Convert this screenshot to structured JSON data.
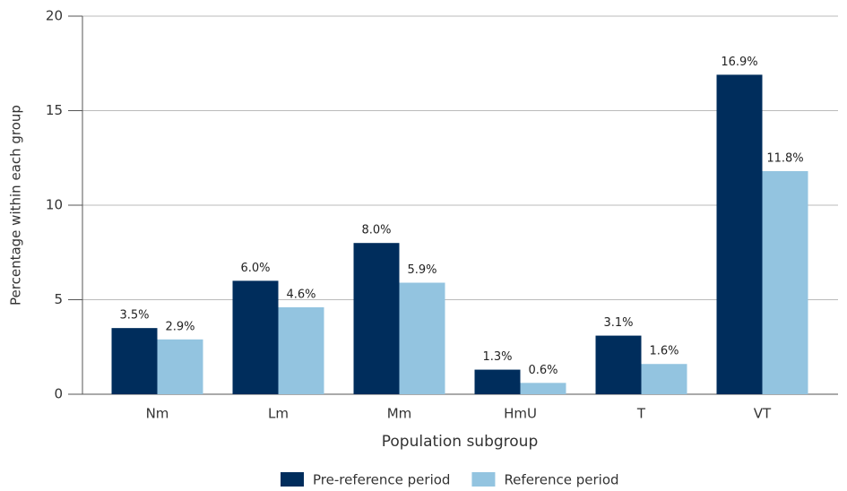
{
  "chart_data": {
    "type": "bar",
    "x_label": "Population subgroup",
    "y_label": "Percentage within each group",
    "categories": [
      "Nm",
      "Lm",
      "Mm",
      "HmU",
      "T",
      "VT"
    ],
    "series": [
      {
        "name": "Pre-reference period",
        "color": "#002d5c",
        "values": [
          3.5,
          6.0,
          8.0,
          1.3,
          3.1,
          16.9
        ],
        "value_labels": [
          "3.5%",
          "6.0%",
          "8.0%",
          "1.3%",
          "3.1%",
          "16.9%"
        ]
      },
      {
        "name": "Reference period",
        "color": "#93c4e0",
        "values": [
          2.9,
          4.6,
          5.9,
          0.6,
          1.6,
          11.8
        ],
        "value_labels": [
          "2.9%",
          "4.6%",
          "5.9%",
          "0.6%",
          "1.6%",
          "11.8%"
        ]
      }
    ],
    "ylim": [
      0,
      20
    ],
    "yticks": [
      0,
      5,
      10,
      15,
      20
    ],
    "grid": true,
    "legend": "bottom"
  }
}
